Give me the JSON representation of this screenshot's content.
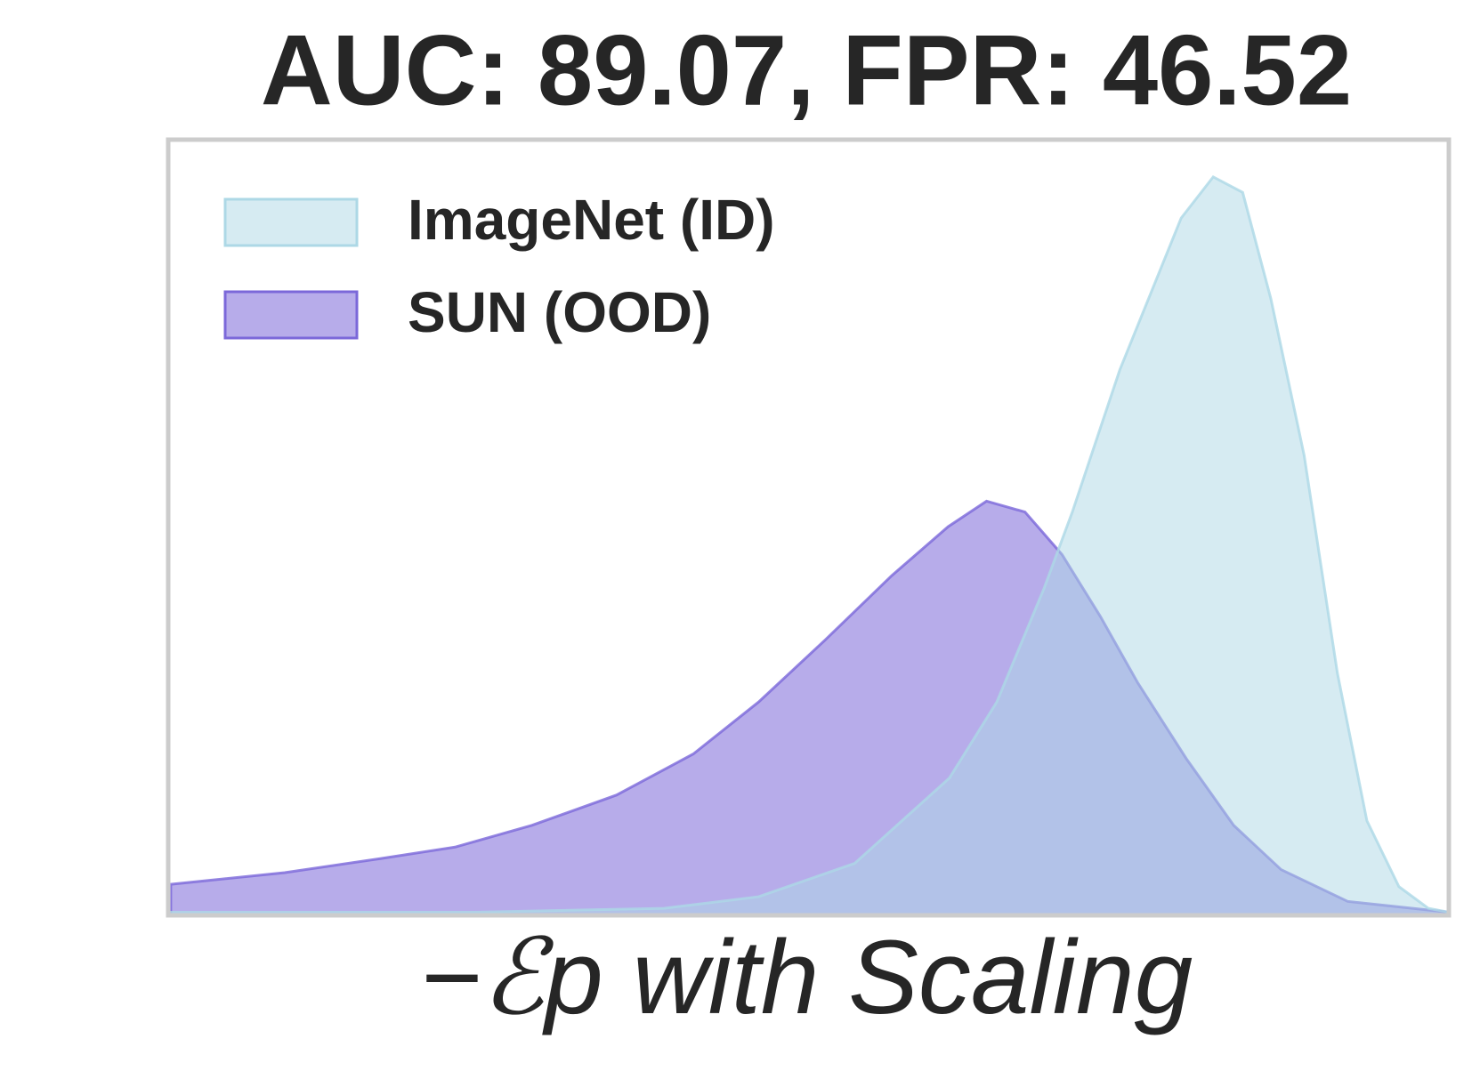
{
  "chart_data": {
    "type": "area",
    "title": "AUC: 89.07, FPR: 46.52",
    "xlabel": "−ℰp with Scaling",
    "xlim": [
      0,
      100
    ],
    "ylim": [
      0,
      100
    ],
    "legend": "upper left",
    "series": [
      {
        "name": "ImageNet (ID)",
        "color": "#add8e6",
        "x": [
          0.2,
          23.9,
          38.7,
          46.1,
          53.6,
          61.0,
          64.7,
          68.4,
          70.6,
          74.3,
          79.1,
          81.6,
          83.9,
          86.1,
          88.7,
          91.3,
          93.6,
          96.1,
          98.4,
          100
        ],
        "values": [
          0.4,
          0.4,
          0.9,
          2.4,
          6.7,
          17.7,
          27.5,
          42.2,
          52.0,
          70.3,
          89.9,
          95.2,
          93.2,
          79.5,
          59.3,
          31.2,
          12.2,
          3.7,
          0.9,
          0.4
        ]
      },
      {
        "name": "SUN (OOD)",
        "color": "#7b68d9",
        "x": [
          0.2,
          9.1,
          16.5,
          22.4,
          28.4,
          35.0,
          41.0,
          46.1,
          51.3,
          56.5,
          60.9,
          63.9,
          66.9,
          69.8,
          72.8,
          75.7,
          79.5,
          83.2,
          86.9,
          92.1,
          100
        ],
        "values": [
          4.0,
          5.5,
          7.3,
          8.8,
          11.6,
          15.5,
          20.8,
          27.5,
          35.5,
          43.8,
          50.1,
          53.4,
          52.0,
          46.5,
          38.5,
          30.0,
          20.2,
          11.6,
          5.9,
          1.8,
          0.4
        ]
      }
    ]
  }
}
